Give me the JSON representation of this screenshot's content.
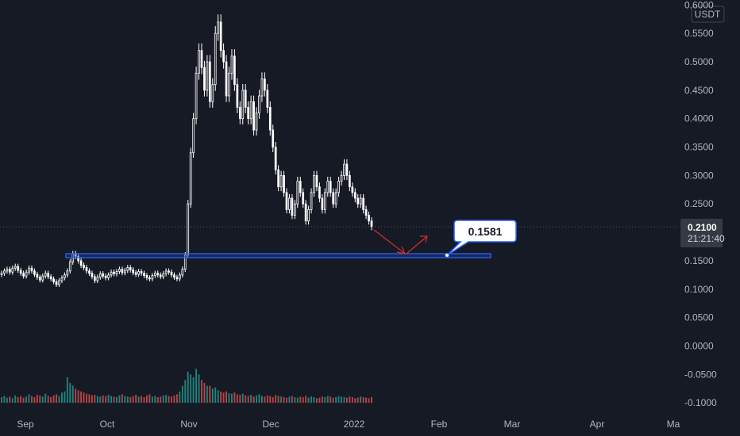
{
  "chart_data": {
    "type": "candlestick",
    "currency_label": "USDT",
    "y_ticks": [
      "0.6000",
      "0.5500",
      "0.5000",
      "0.4500",
      "0.4000",
      "0.3500",
      "0.3000",
      "0.2500",
      "0.2000",
      "0.1500",
      "0.1000",
      "0.0500",
      "0.0000",
      "-0.0500",
      "-0.1000"
    ],
    "y_tick_values": [
      0.6,
      0.55,
      0.5,
      0.45,
      0.4,
      0.35,
      0.3,
      0.25,
      0.2,
      0.15,
      0.1,
      0.05,
      0.0,
      -0.05,
      -0.1
    ],
    "ylim": [
      -0.104,
      0.606
    ],
    "x_ticks": [
      "Sep",
      "Oct",
      "Nov",
      "Dec",
      "2022",
      "Feb",
      "Mar",
      "Apr",
      "Ma"
    ],
    "current_price": {
      "label": "0.2100",
      "value": 0.21,
      "countdown": "21:21:40"
    },
    "support_level": {
      "value": 0.1581,
      "label": "0.1581"
    },
    "colors": {
      "background": "#161a25",
      "candle": "#ffffff",
      "volume_up": "#26a69a",
      "volume_down": "#ef5350",
      "support_line": "#2962ff",
      "arrow": "#d32f2f",
      "price_label_bg": "#363a45"
    },
    "closes": [
      0.128,
      0.132,
      0.135,
      0.13,
      0.137,
      0.14,
      0.133,
      0.128,
      0.123,
      0.13,
      0.137,
      0.132,
      0.126,
      0.121,
      0.116,
      0.123,
      0.128,
      0.122,
      0.118,
      0.113,
      0.108,
      0.115,
      0.12,
      0.125,
      0.132,
      0.148,
      0.162,
      0.158,
      0.15,
      0.142,
      0.138,
      0.132,
      0.128,
      0.122,
      0.115,
      0.121,
      0.127,
      0.123,
      0.12,
      0.125,
      0.13,
      0.127,
      0.131,
      0.135,
      0.129,
      0.133,
      0.138,
      0.134,
      0.129,
      0.126,
      0.131,
      0.128,
      0.124,
      0.12,
      0.118,
      0.124,
      0.128,
      0.125,
      0.122,
      0.127,
      0.132,
      0.13,
      0.125,
      0.121,
      0.118,
      0.125,
      0.135,
      0.16,
      0.25,
      0.34,
      0.4,
      0.48,
      0.52,
      0.49,
      0.45,
      0.5,
      0.43,
      0.46,
      0.55,
      0.57,
      0.52,
      0.5,
      0.44,
      0.48,
      0.51,
      0.46,
      0.42,
      0.4,
      0.45,
      0.42,
      0.4,
      0.43,
      0.38,
      0.41,
      0.44,
      0.47,
      0.45,
      0.42,
      0.38,
      0.35,
      0.31,
      0.28,
      0.3,
      0.27,
      0.24,
      0.26,
      0.23,
      0.25,
      0.29,
      0.27,
      0.25,
      0.22,
      0.24,
      0.27,
      0.3,
      0.28,
      0.26,
      0.24,
      0.27,
      0.29,
      0.27,
      0.25,
      0.27,
      0.29,
      0.3,
      0.32,
      0.3,
      0.28,
      0.27,
      0.26,
      0.25,
      0.26,
      0.24,
      0.23,
      0.22,
      0.21
    ],
    "volumes": [
      0.01,
      0.012,
      0.009,
      0.011,
      0.008,
      0.013,
      0.01,
      0.012,
      0.009,
      0.011,
      0.015,
      0.012,
      0.01,
      0.014,
      0.013,
      0.011,
      0.016,
      0.012,
      0.01,
      0.013,
      0.015,
      0.012,
      0.018,
      0.02,
      0.045,
      0.035,
      0.03,
      0.025,
      0.022,
      0.02,
      0.018,
      0.016,
      0.015,
      0.013,
      0.014,
      0.012,
      0.011,
      0.013,
      0.012,
      0.014,
      0.012,
      0.011,
      0.01,
      0.013,
      0.015,
      0.012,
      0.011,
      0.01,
      0.012,
      0.014,
      0.011,
      0.012,
      0.01,
      0.013,
      0.015,
      0.011,
      0.012,
      0.01,
      0.011,
      0.013,
      0.014,
      0.012,
      0.011,
      0.013,
      0.015,
      0.02,
      0.03,
      0.04,
      0.055,
      0.05,
      0.045,
      0.06,
      0.05,
      0.04,
      0.035,
      0.03,
      0.03,
      0.025,
      0.027,
      0.022,
      0.02,
      0.018,
      0.02,
      0.017,
      0.016,
      0.018,
      0.015,
      0.014,
      0.016,
      0.013,
      0.012,
      0.014,
      0.011,
      0.013,
      0.015,
      0.012,
      0.011,
      0.013,
      0.012,
      0.01,
      0.014,
      0.012,
      0.011,
      0.01,
      0.009,
      0.011,
      0.012,
      0.01,
      0.009,
      0.011,
      0.01,
      0.012,
      0.009,
      0.011,
      0.01,
      0.008,
      0.009,
      0.011,
      0.01,
      0.012,
      0.011,
      0.009,
      0.01,
      0.012,
      0.011,
      0.01,
      0.009,
      0.011,
      0.01,
      0.008,
      0.009,
      0.011,
      0.01,
      0.009,
      0.008,
      0.01
    ]
  }
}
